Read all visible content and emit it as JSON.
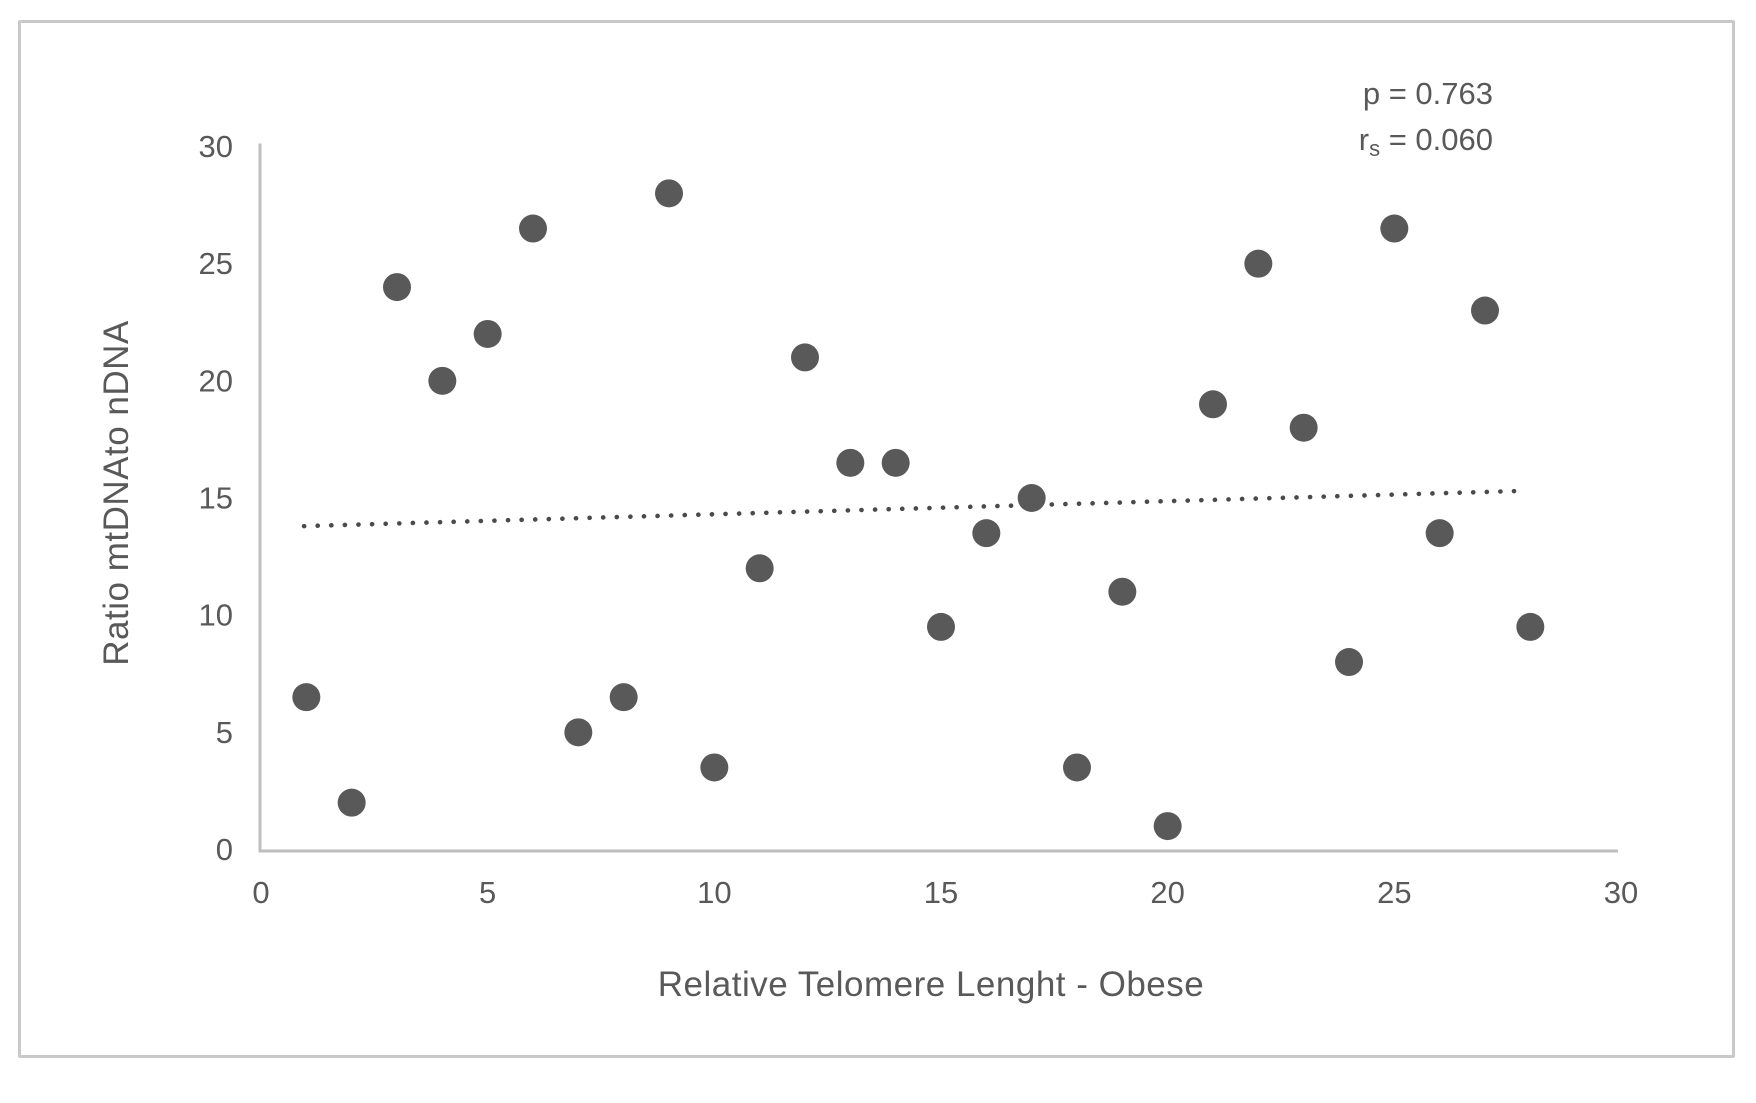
{
  "frame": {
    "border_color": "#c9c9c9",
    "background": "#ffffff"
  },
  "annotation": {
    "p_line": "p = 0.763",
    "r_base": "r",
    "r_sub": "s",
    "r_value": " = 0.060"
  },
  "style": {
    "point_color": "#595959",
    "trend_color": "#4a4a4a",
    "axis_color": "#bfbfbf",
    "text_color": "#595959"
  },
  "chart_data": {
    "type": "scatter",
    "title": "",
    "xlabel": "Relative Telomere Lenght - Obese",
    "ylabel": "Ratio mtDNAto nDNA",
    "xlim": [
      0,
      30
    ],
    "ylim": [
      0,
      30
    ],
    "x_ticks": [
      0,
      5,
      10,
      15,
      20,
      25,
      30
    ],
    "y_ticks": [
      0,
      5,
      10,
      15,
      20,
      25,
      30
    ],
    "grid": false,
    "legend": null,
    "series": [
      {
        "name": "",
        "points": [
          [
            1,
            6.5
          ],
          [
            2,
            2
          ],
          [
            3,
            24
          ],
          [
            4,
            20
          ],
          [
            5,
            22
          ],
          [
            6,
            26.5
          ],
          [
            7,
            5
          ],
          [
            8,
            6.5
          ],
          [
            9,
            28
          ],
          [
            10,
            3.5
          ],
          [
            11,
            12
          ],
          [
            12,
            21
          ],
          [
            13,
            16.5
          ],
          [
            14,
            16.5
          ],
          [
            15,
            9.5
          ],
          [
            16,
            13.5
          ],
          [
            17,
            15
          ],
          [
            18,
            3.5
          ],
          [
            19,
            11
          ],
          [
            20,
            1
          ],
          [
            21,
            19
          ],
          [
            22,
            25
          ],
          [
            23,
            18
          ],
          [
            24,
            8
          ],
          [
            25,
            26.5
          ],
          [
            26,
            13.5
          ],
          [
            27,
            23
          ],
          [
            28,
            9.5
          ]
        ]
      }
    ],
    "trendline": {
      "style": "dotted",
      "x1": 0.95,
      "y1": 13.8,
      "x2": 27.75,
      "y2": 15.3
    },
    "stats": {
      "p": "0.763",
      "r_s": "0.060"
    }
  }
}
